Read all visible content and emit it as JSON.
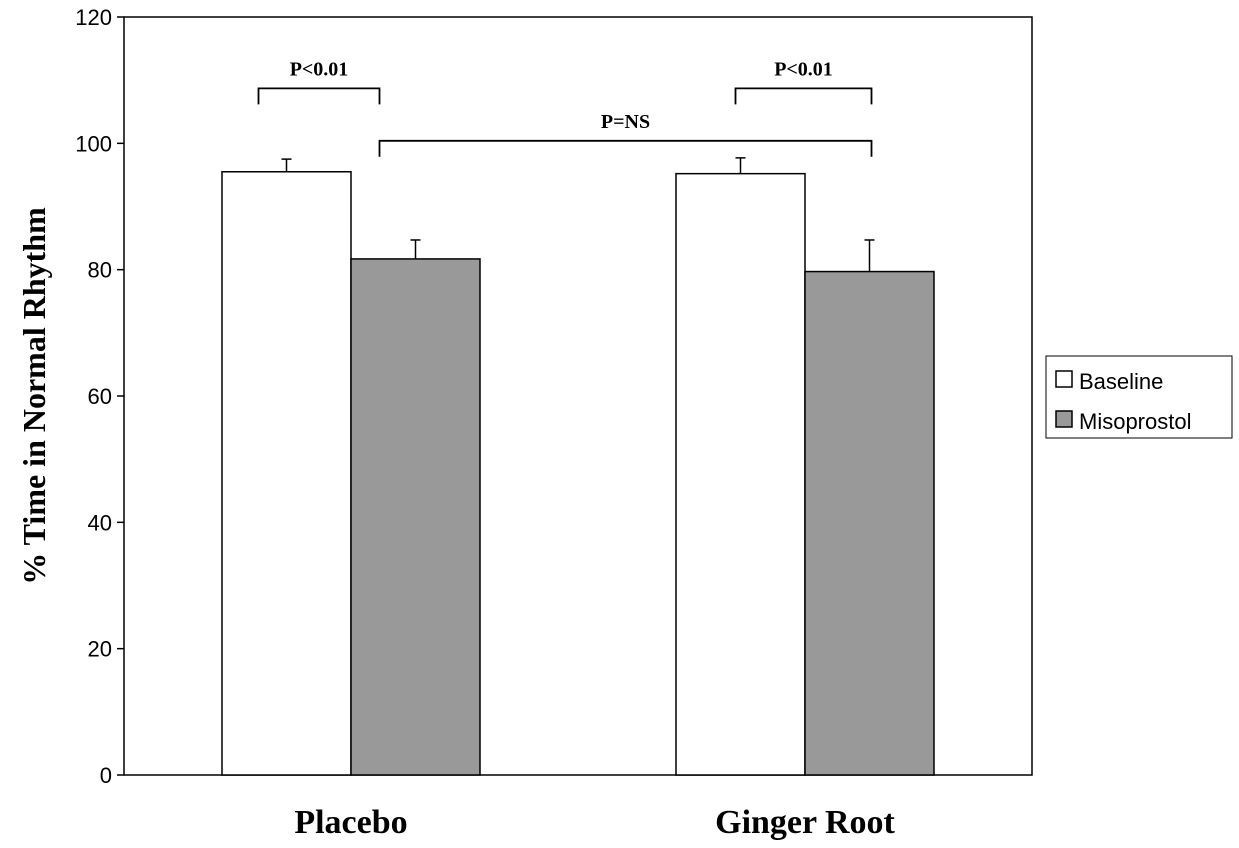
{
  "chart_data": {
    "type": "bar",
    "categories": [
      "Placebo",
      "Ginger Root"
    ],
    "series": [
      {
        "name": "Baseline",
        "values": [
          95.5,
          95.2
        ],
        "errors": [
          2.0,
          2.5
        ],
        "color": "#ffffff"
      },
      {
        "name": "Misoprostol",
        "values": [
          81.7,
          79.7
        ],
        "errors": [
          3.0,
          5.0
        ],
        "color": "#999999"
      }
    ],
    "xlabel": "",
    "ylabel": "% Time in Normal Rhythm",
    "ylim": [
      0,
      120
    ],
    "yticks": [
      "0",
      "20",
      "40",
      "60",
      "80",
      "100",
      "120"
    ],
    "grid": false,
    "legend_position": "right",
    "annotations": [
      {
        "label": "P<0.01",
        "from": "Placebo / Baseline",
        "to": "Placebo / Misoprostol"
      },
      {
        "label": "P<0.01",
        "from": "Ginger Root / Baseline",
        "to": "Ginger Root / Misoprostol"
      },
      {
        "label": "P=NS",
        "from": "Placebo / Misoprostol",
        "to": "Ginger Root / Misoprostol"
      }
    ]
  }
}
